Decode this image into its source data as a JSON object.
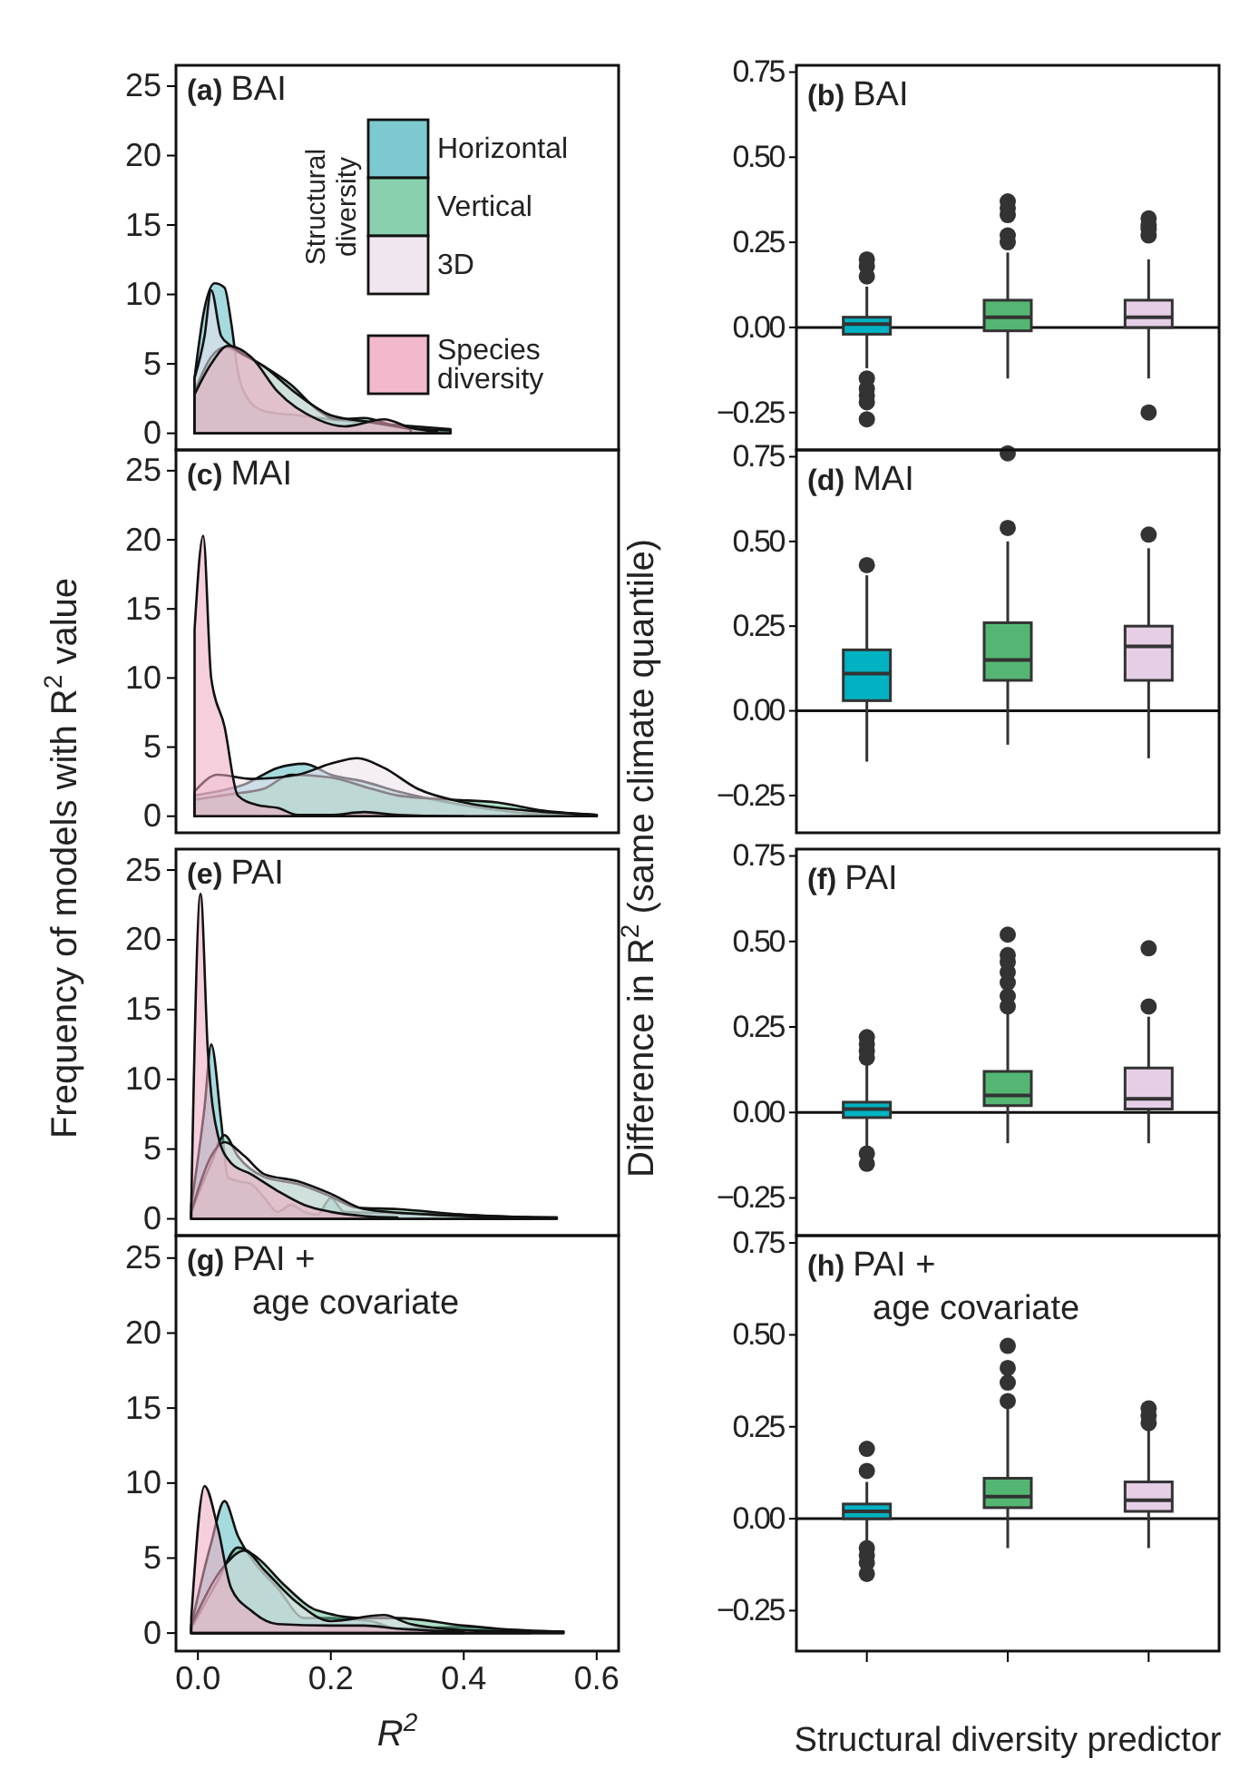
{
  "chart_data": [
    {
      "type": "area",
      "title": "(a) BAI",
      "ylabel": "Frequency of models with R$^{2}$ value",
      "legend": "top right",
      "legend_title": "Structural diversity",
      "xlim": [
        -0.033,
        0.633
      ],
      "ylim": [
        -1.2,
        26.5
      ],
      "yticks": [
        0,
        5,
        10,
        15,
        20,
        25
      ],
      "tick_labels": "y",
      "series": [
        {
          "name": "Horizontal",
          "color": "#5bbdc4",
          "x": [
            -0.005,
            0.01,
            0.025,
            0.04,
            0.05,
            0.06,
            0.075,
            0.1,
            0.15,
            0.2,
            0.25,
            0.3,
            0.38
          ],
          "values": [
            4,
            9,
            10.8,
            10.5,
            8,
            4.5,
            2.5,
            1.6,
            1.3,
            1.0,
            0.8,
            0.6,
            0.3
          ]
        },
        {
          "name": "Vertical",
          "color": "#6cc49b",
          "x": [
            -0.005,
            0.02,
            0.04,
            0.07,
            0.1,
            0.14,
            0.18,
            0.21,
            0.25,
            0.3,
            0.38
          ],
          "values": [
            3,
            5.5,
            6.2,
            5.6,
            4.8,
            3.5,
            1.7,
            1.0,
            1.1,
            0.5,
            0.2
          ]
        },
        {
          "name": "3D",
          "color": "#ece0ec",
          "x": [
            -0.005,
            0.01,
            0.02,
            0.035,
            0.05,
            0.1,
            0.15,
            0.2,
            0.26,
            0.32
          ],
          "values": [
            4,
            7,
            10.3,
            7,
            6.3,
            4.8,
            2.8,
            1.3,
            0.8,
            0.3
          ]
        },
        {
          "name": "Species diversity",
          "color": "#efa7c0",
          "x": [
            -0.005,
            0.02,
            0.045,
            0.08,
            0.12,
            0.18,
            0.22,
            0.28,
            0.32,
            0.36
          ],
          "values": [
            2.8,
            5,
            6.3,
            5.5,
            3,
            1.0,
            0.5,
            1.0,
            0.4,
            0.1
          ]
        }
      ]
    },
    {
      "type": "box",
      "title": "(b) BAI",
      "ylabel": "Difference in R$^{2}$ (same climate quantile)",
      "categories": [
        null,
        null,
        null
      ],
      "colors": [
        "#00b2c2",
        "#55b673",
        "#e6cfe6"
      ],
      "ylim": [
        -0.36,
        0.77
      ],
      "yticks": [
        {
          "value": -0.25,
          "label": "−0.25"
        },
        {
          "value": 0,
          "label": "0.00"
        },
        {
          "value": 0.25,
          "label": "0.25"
        },
        {
          "value": 0.5,
          "label": "0.50"
        },
        {
          "value": 0.75,
          "label": "0.75"
        }
      ],
      "ref_lines": [
        {
          "axis": "y",
          "value": 0,
          "label": null
        }
      ],
      "boxes": [
        {
          "low": -0.12,
          "q1": -0.02,
          "median": 0.01,
          "q3": 0.03,
          "high": 0.12,
          "outliers": [
            0.15,
            0.18,
            0.2,
            -0.15,
            -0.18,
            -0.2,
            -0.22,
            -0.27
          ]
        },
        {
          "low": -0.15,
          "q1": -0.01,
          "median": 0.03,
          "q3": 0.08,
          "high": 0.22,
          "outliers": [
            0.25,
            0.27,
            0.33,
            0.35,
            0.37
          ]
        },
        {
          "low": -0.15,
          "q1": 0,
          "median": 0.03,
          "q3": 0.08,
          "high": 0.2,
          "outliers": [
            0.27,
            0.29,
            0.3,
            0.32,
            -0.25
          ]
        }
      ]
    },
    {
      "type": "area",
      "title": "(c) MAI",
      "legend": false,
      "xlim": [
        -0.033,
        0.633
      ],
      "ylim": [
        -1.2,
        26.5
      ],
      "yticks": [
        0,
        5,
        10,
        15,
        20,
        25
      ],
      "tick_labels": "y",
      "series": [
        {
          "color": "#5bbdc4",
          "x": [
            -0.005,
            0.03,
            0.07,
            0.12,
            0.16,
            0.2,
            0.25,
            0.3,
            0.4,
            0.5,
            0.6
          ],
          "values": [
            1.5,
            1.8,
            2.3,
            3.5,
            3.8,
            3,
            2.5,
            1.8,
            0.8,
            0.2,
            0.1
          ]
        },
        {
          "color": "#6cc49b",
          "x": [
            -0.005,
            0.05,
            0.1,
            0.14,
            0.2,
            0.26,
            0.3,
            0.38,
            0.45,
            0.52,
            0.6
          ],
          "values": [
            1.2,
            1.6,
            2,
            3,
            2.8,
            2,
            1.5,
            1.2,
            1,
            0.4,
            0.1
          ]
        },
        {
          "color": "#ece0ec",
          "x": [
            -0.005,
            0.03,
            0.08,
            0.15,
            0.2,
            0.24,
            0.28,
            0.33,
            0.4,
            0.5,
            0.6
          ],
          "values": [
            1.8,
            3,
            2.7,
            3,
            3.8,
            4.2,
            3.5,
            2,
            1,
            0.4,
            0.1
          ]
        },
        {
          "color": "#efa7c0",
          "x": [
            -0.005,
            0.008,
            0.02,
            0.04,
            0.06,
            0.09,
            0.12,
            0.15,
            0.2,
            0.25,
            0.3,
            0.4
          ],
          "values": [
            13.5,
            20.3,
            10,
            6.5,
            1.5,
            0.8,
            0.6,
            0.1,
            0.1,
            0.3,
            0.1,
            0
          ]
        }
      ]
    },
    {
      "type": "box",
      "title": "(d) MAI",
      "categories": [
        null,
        null,
        null
      ],
      "colors": [
        "#00b2c2",
        "#55b673",
        "#e6cfe6"
      ],
      "ylim": [
        -0.36,
        0.77
      ],
      "yticks": [
        {
          "value": -0.25,
          "label": "−0.25"
        },
        {
          "value": 0,
          "label": "0.00"
        },
        {
          "value": 0.25,
          "label": "0.25"
        },
        {
          "value": 0.5,
          "label": "0.50"
        },
        {
          "value": 0.75,
          "label": "0.75"
        }
      ],
      "ref_lines": [
        {
          "axis": "y",
          "value": 0,
          "label": null
        }
      ],
      "boxes": [
        {
          "low": -0.15,
          "q1": 0.03,
          "median": 0.11,
          "q3": 0.18,
          "high": 0.4,
          "outliers": [
            0.43
          ]
        },
        {
          "low": -0.1,
          "q1": 0.09,
          "median": 0.15,
          "q3": 0.26,
          "high": 0.5,
          "outliers": [
            0.54,
            0.76
          ]
        },
        {
          "low": -0.14,
          "q1": 0.09,
          "median": 0.19,
          "q3": 0.25,
          "high": 0.48,
          "outliers": [
            0.52
          ]
        }
      ]
    },
    {
      "type": "area",
      "title": "(e) PAI",
      "legend": false,
      "xlim": [
        -0.033,
        0.633
      ],
      "ylim": [
        -1.2,
        26.5
      ],
      "yticks": [
        0,
        5,
        10,
        15,
        20,
        25
      ],
      "tick_labels": "y",
      "series": [
        {
          "color": "#5bbdc4",
          "x": [
            -0.01,
            0.01,
            0.02,
            0.035,
            0.045,
            0.06,
            0.08,
            0.1,
            0.12,
            0.14,
            0.16,
            0.18,
            0.2,
            0.22,
            0.3,
            0.4,
            0.5,
            0.54
          ],
          "values": [
            1,
            8,
            12.5,
            7,
            3,
            2.7,
            2.5,
            1.5,
            0.5,
            1,
            0.5,
            0.3,
            1.5,
            0.5,
            0.4,
            0.3,
            0.1,
            0.1
          ]
        },
        {
          "color": "#6cc49b",
          "x": [
            -0.01,
            0.02,
            0.04,
            0.06,
            0.1,
            0.15,
            0.2,
            0.24,
            0.3,
            0.4,
            0.54
          ],
          "values": [
            0.5,
            4,
            6,
            4.5,
            3,
            2.5,
            1.6,
            0.8,
            0.7,
            0.3,
            0.1
          ]
        },
        {
          "color": "#ece0ec",
          "x": [
            -0.01,
            0.02,
            0.04,
            0.07,
            0.1,
            0.15,
            0.2,
            0.25,
            0.35,
            0.5
          ],
          "values": [
            0.5,
            4.5,
            5.5,
            4.5,
            3.2,
            2.7,
            1.8,
            0.7,
            0.3,
            0.1
          ]
        },
        {
          "color": "#efa7c0",
          "x": [
            -0.01,
            0.004,
            0.015,
            0.03,
            0.05,
            0.08,
            0.12,
            0.16,
            0.2,
            0.25,
            0.3
          ],
          "values": [
            1,
            23.3,
            12,
            6,
            4,
            3.2,
            2,
            1,
            0.5,
            0.2,
            0.1
          ]
        }
      ]
    },
    {
      "type": "box",
      "title": "(f) PAI",
      "categories": [
        null,
        null,
        null
      ],
      "colors": [
        "#00b2c2",
        "#55b673",
        "#e6cfe6"
      ],
      "ylim": [
        -0.36,
        0.77
      ],
      "yticks": [
        {
          "value": -0.25,
          "label": "−0.25"
        },
        {
          "value": 0,
          "label": "0.00"
        },
        {
          "value": 0.25,
          "label": "0.25"
        },
        {
          "value": 0.5,
          "label": "0.50"
        },
        {
          "value": 0.75,
          "label": "0.75"
        }
      ],
      "ref_lines": [
        {
          "axis": "y",
          "value": 0,
          "label": null
        }
      ],
      "boxes": [
        {
          "low": -0.1,
          "q1": -0.015,
          "median": 0.01,
          "q3": 0.03,
          "high": 0.14,
          "outliers": [
            0.16,
            0.18,
            0.2,
            0.22,
            -0.12,
            -0.15
          ]
        },
        {
          "low": -0.09,
          "q1": 0.02,
          "median": 0.05,
          "q3": 0.12,
          "high": 0.29,
          "outliers": [
            0.31,
            0.34,
            0.38,
            0.41,
            0.44,
            0.46,
            0.52
          ]
        },
        {
          "low": -0.09,
          "q1": 0.01,
          "median": 0.04,
          "q3": 0.13,
          "high": 0.28,
          "outliers": [
            0.31,
            0.48
          ]
        }
      ]
    },
    {
      "type": "area",
      "title": "(g) PAI + age covariate",
      "xlabel": "R$^{2}$",
      "legend": false,
      "xlim": [
        -0.033,
        0.633
      ],
      "ylim": [
        -1.2,
        26.5
      ],
      "yticks": [
        0,
        5,
        10,
        15,
        20,
        25
      ],
      "xticks": [
        {
          "value": 0,
          "label": "0.0"
        },
        {
          "value": 0.2,
          "label": "0.2"
        },
        {
          "value": 0.4,
          "label": "0.4"
        },
        {
          "value": 0.6,
          "label": "0.6"
        }
      ],
      "series": [
        {
          "color": "#5bbdc4",
          "x": [
            -0.01,
            0.02,
            0.04,
            0.06,
            0.08,
            0.12,
            0.16,
            0.2,
            0.26,
            0.3,
            0.4,
            0.5,
            0.55
          ],
          "values": [
            0.5,
            6,
            8.8,
            6.5,
            5,
            3,
            1,
            1,
            0.8,
            0.3,
            0.4,
            0.1,
            0.1
          ]
        },
        {
          "color": "#6cc49b",
          "x": [
            -0.01,
            0.03,
            0.06,
            0.09,
            0.13,
            0.18,
            0.25,
            0.3,
            0.4,
            0.45,
            0.55
          ],
          "values": [
            0.3,
            3.5,
            5.7,
            5,
            3.2,
            1.5,
            1,
            1,
            0.5,
            0.3,
            0.1
          ]
        },
        {
          "color": "#ece0ec",
          "x": [
            -0.01,
            0.04,
            0.07,
            0.1,
            0.15,
            0.2,
            0.28,
            0.32,
            0.4,
            0.5
          ],
          "values": [
            0.5,
            4.5,
            5.5,
            4.2,
            2,
            0.8,
            1.2,
            0.6,
            0.2,
            0.1
          ]
        },
        {
          "color": "#efa7c0",
          "x": [
            -0.01,
            0.01,
            0.03,
            0.05,
            0.08,
            0.12,
            0.2,
            0.25,
            0.3,
            0.4
          ],
          "values": [
            1,
            9.8,
            7,
            3,
            1.5,
            0.6,
            0.5,
            0.5,
            0.3,
            0.1
          ]
        }
      ]
    },
    {
      "type": "box",
      "title": "(h) PAI + age covariate",
      "xlabel": "Structural diversity predictor",
      "categories": [
        null,
        null,
        null
      ],
      "colors": [
        "#00b2c2",
        "#55b673",
        "#e6cfe6"
      ],
      "ylim": [
        -0.36,
        0.77
      ],
      "yticks": [
        {
          "value": -0.25,
          "label": "−0.25"
        },
        {
          "value": 0,
          "label": "0.00"
        },
        {
          "value": 0.25,
          "label": "0.25"
        },
        {
          "value": 0.5,
          "label": "0.50"
        },
        {
          "value": 0.75,
          "label": "0.75"
        }
      ],
      "ref_lines": [
        {
          "axis": "y",
          "value": 0,
          "label": null
        }
      ],
      "boxes": [
        {
          "low": -0.06,
          "q1": 0,
          "median": 0.02,
          "q3": 0.04,
          "high": 0.1,
          "outliers": [
            0.13,
            0.19,
            -0.08,
            -0.1,
            -0.12,
            -0.15
          ]
        },
        {
          "low": -0.08,
          "q1": 0.03,
          "median": 0.06,
          "q3": 0.11,
          "high": 0.3,
          "outliers": [
            0.32,
            0.37,
            0.41,
            0.47
          ]
        },
        {
          "low": -0.08,
          "q1": 0.02,
          "median": 0.05,
          "q3": 0.1,
          "high": 0.25,
          "outliers": [
            0.26,
            0.28,
            0.3
          ]
        }
      ]
    }
  ]
}
